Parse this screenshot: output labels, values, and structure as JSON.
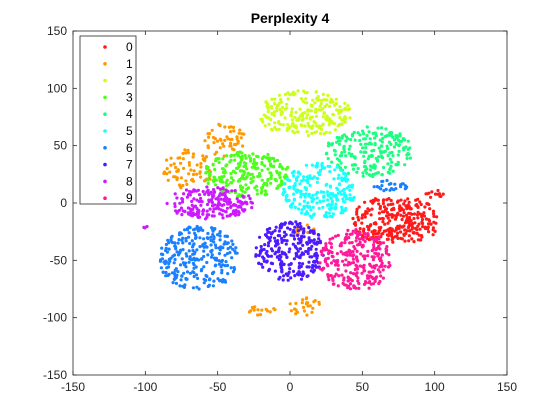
{
  "chart_data": {
    "type": "scatter",
    "title": "Perplexity 4",
    "xlabel": "",
    "ylabel": "",
    "xlim": [
      -150,
      150
    ],
    "ylim": [
      -150,
      150
    ],
    "xticks": [
      -150,
      -100,
      -50,
      0,
      50,
      100,
      150
    ],
    "yticks": [
      -150,
      -100,
      -50,
      0,
      50,
      100,
      150
    ],
    "grid": false,
    "legend_position": "top-left",
    "series": [
      {
        "name": "0",
        "color": "#ff1a1a",
        "clusters": [
          {
            "cx": 65,
            "cy": -15,
            "rx": 22,
            "ry": 20,
            "n": 160
          },
          {
            "cx": 85,
            "cy": -15,
            "rx": 18,
            "ry": 20,
            "n": 130
          },
          {
            "cx": 100,
            "cy": 8,
            "rx": 6,
            "ry": 4,
            "n": 12
          }
        ]
      },
      {
        "name": "1",
        "color": "#ff9900",
        "clusters": [
          {
            "cx": -70,
            "cy": 30,
            "rx": 18,
            "ry": 18,
            "n": 70
          },
          {
            "cx": -45,
            "cy": 55,
            "rx": 15,
            "ry": 15,
            "n": 50
          },
          {
            "cx": 10,
            "cy": -90,
            "rx": 12,
            "ry": 8,
            "n": 25
          },
          {
            "cx": -20,
            "cy": -92,
            "rx": 10,
            "ry": 6,
            "n": 15
          },
          {
            "cx": 10,
            "cy": -25,
            "rx": 8,
            "ry": 6,
            "n": 12
          }
        ]
      },
      {
        "name": "2",
        "color": "#ccff1a",
        "clusters": [
          {
            "cx": 10,
            "cy": 78,
            "rx": 33,
            "ry": 20,
            "n": 230
          }
        ]
      },
      {
        "name": "3",
        "color": "#4dff1a",
        "clusters": [
          {
            "cx": -30,
            "cy": 25,
            "rx": 30,
            "ry": 20,
            "n": 230
          }
        ]
      },
      {
        "name": "4",
        "color": "#1aff80",
        "clusters": [
          {
            "cx": 55,
            "cy": 45,
            "rx": 30,
            "ry": 22,
            "n": 210
          }
        ]
      },
      {
        "name": "5",
        "color": "#1affff",
        "clusters": [
          {
            "cx": 20,
            "cy": 10,
            "rx": 25,
            "ry": 25,
            "n": 230
          }
        ]
      },
      {
        "name": "6",
        "color": "#1a80ff",
        "clusters": [
          {
            "cx": -63,
            "cy": -48,
            "rx": 28,
            "ry": 28,
            "n": 270
          },
          {
            "cx": 70,
            "cy": 15,
            "rx": 12,
            "ry": 5,
            "n": 25
          }
        ]
      },
      {
        "name": "7",
        "color": "#4d1aff",
        "clusters": [
          {
            "cx": 0,
            "cy": -42,
            "rx": 24,
            "ry": 26,
            "n": 260
          }
        ]
      },
      {
        "name": "8",
        "color": "#cc1aff",
        "clusters": [
          {
            "cx": -55,
            "cy": 0,
            "rx": 30,
            "ry": 14,
            "n": 200
          },
          {
            "cx": -100,
            "cy": -22,
            "rx": 2,
            "ry": 2,
            "n": 3
          }
        ]
      },
      {
        "name": "9",
        "color": "#ff1a99",
        "clusters": [
          {
            "cx": 45,
            "cy": -50,
            "rx": 25,
            "ry": 27,
            "n": 270
          }
        ]
      }
    ]
  }
}
